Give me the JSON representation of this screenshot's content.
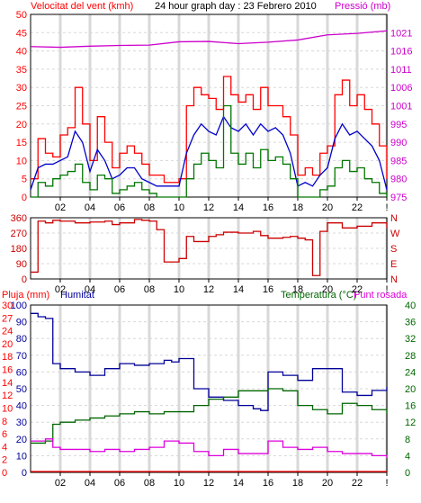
{
  "colors": {
    "background": "#ffffff",
    "grid": "#d8d8d8",
    "axis": "#000000",
    "wind_gust": "#ff0000",
    "wind_avg": "#0000cc",
    "wind_green": "#007700",
    "pressure": "#cc00cc",
    "direction": "#cc0000",
    "humidity": "#000099",
    "temperature": "#006600",
    "dewpoint": "#dd00dd",
    "rain": "#ff0000"
  },
  "titles": {
    "wind": "Velocitat del vent (kmh)",
    "graph": "24 hour graph day : 23 Febrero 2010",
    "pressure": "Pressió (mb)",
    "rain": "Pluja (mm)",
    "humidity": "Humitat",
    "temperature": "Temperatura (°C)",
    "dewpoint": "Punt rosada"
  },
  "chart_data": [
    {
      "type": "line",
      "name": "wind-pressure",
      "x_ticks": [
        "02",
        "04",
        "06",
        "08",
        "10",
        "12",
        "14",
        "16",
        "18",
        "20",
        "22",
        "!"
      ],
      "y_left_ticks": [
        "0",
        "5",
        "10",
        "15",
        "20",
        "25",
        "30",
        "35",
        "40",
        "45",
        "50"
      ],
      "y_left_range": [
        0,
        50
      ],
      "y_right_ticks": [
        "975",
        "980",
        "985",
        "990",
        "995",
        "1001",
        "1006",
        "1011",
        "1016",
        "1021"
      ],
      "y_right_range": [
        975,
        1025
      ],
      "series": [
        {
          "key": "gust",
          "x": [
            0,
            0.5,
            1,
            1.5,
            2,
            2.5,
            3,
            3.5,
            4,
            4.5,
            5,
            5.5,
            6,
            6.5,
            7,
            7.5,
            8,
            8.5,
            9,
            9.5,
            10,
            10.5,
            11,
            11.5,
            12,
            12.5,
            13,
            13.5,
            14,
            14.5,
            15,
            15.5,
            16,
            16.5,
            17,
            17.5,
            18,
            18.5,
            19,
            19.5,
            20,
            20.5,
            21,
            21.5,
            22,
            22.5,
            23,
            23.5,
            24
          ],
          "values": [
            5,
            16,
            12,
            11,
            17,
            19,
            30,
            20,
            10,
            22,
            15,
            8,
            12,
            14,
            12,
            9,
            6,
            6,
            4,
            4,
            5,
            25,
            30,
            28,
            27,
            24,
            33,
            28,
            26,
            28,
            24,
            30,
            25,
            25,
            22,
            17,
            6,
            8,
            6,
            12,
            14,
            28,
            32,
            25,
            28,
            24,
            20,
            14,
            5
          ]
        },
        {
          "key": "average",
          "x": [
            0,
            0.5,
            1,
            1.5,
            2,
            2.5,
            3,
            3.5,
            4,
            4.5,
            5,
            5.5,
            6,
            6.5,
            7,
            7.5,
            8,
            8.5,
            9,
            9.5,
            10,
            10.5,
            11,
            11.5,
            12,
            12.5,
            13,
            13.5,
            14,
            14.5,
            15,
            15.5,
            16,
            16.5,
            17,
            17.5,
            18,
            18.5,
            19,
            19.5,
            20,
            20.5,
            21,
            21.5,
            22,
            22.5,
            23,
            23.5,
            24
          ],
          "values": [
            2,
            8,
            9,
            9,
            10,
            11,
            18,
            15,
            7,
            13,
            10,
            5,
            6,
            8,
            8,
            5,
            4,
            3,
            3,
            3,
            3,
            12,
            17,
            20,
            18,
            17,
            22,
            19,
            18,
            20,
            17,
            20,
            18,
            19,
            17,
            12,
            3,
            4,
            3,
            6,
            8,
            16,
            20,
            17,
            18,
            16,
            14,
            10,
            2
          ]
        },
        {
          "key": "calm",
          "x": [
            0,
            0.5,
            1,
            1.5,
            2,
            2.5,
            3,
            3.5,
            4,
            4.5,
            5,
            5.5,
            6,
            6.5,
            7,
            7.5,
            8,
            8.5,
            9,
            9.5,
            10,
            10.5,
            11,
            11.5,
            12,
            12.5,
            13,
            13.5,
            14,
            14.5,
            15,
            15.5,
            16,
            16.5,
            17,
            17.5,
            18,
            18.5,
            19,
            19.5,
            20,
            20.5,
            21,
            21.5,
            22,
            22.5,
            23,
            23.5,
            24
          ],
          "values": [
            0,
            4,
            3,
            5,
            6,
            7,
            9,
            4,
            2,
            6,
            5,
            1,
            2,
            3,
            4,
            2,
            1,
            0,
            0,
            0,
            0,
            5,
            9,
            12,
            10,
            8,
            25,
            12,
            9,
            12,
            8,
            13,
            10,
            11,
            9,
            5,
            0,
            0,
            0,
            2,
            3,
            8,
            10,
            7,
            8,
            5,
            4,
            1,
            0
          ]
        },
        {
          "key": "pressure",
          "axis": "right",
          "x": [
            0,
            2,
            4,
            6,
            8,
            10,
            12,
            14,
            16,
            18,
            20,
            22,
            24
          ],
          "values": [
            1016.2,
            1016.0,
            1016.3,
            1016.5,
            1016.6,
            1017.5,
            1017.6,
            1017.0,
            1017.4,
            1018.0,
            1019.4,
            1019.8,
            1020.5
          ]
        }
      ]
    },
    {
      "type": "line",
      "name": "wind-direction",
      "x_ticks": [
        "02",
        "04",
        "06",
        "08",
        "10",
        "12",
        "14",
        "16",
        "18",
        "20",
        "22",
        "!"
      ],
      "y_left_ticks": [
        "360",
        "270",
        "180",
        "90",
        "0"
      ],
      "y_left_range": [
        0,
        360
      ],
      "y_right_ticks": [
        "N",
        "W",
        "S",
        "E",
        "N"
      ],
      "series": [
        {
          "key": "direction",
          "x": [
            0,
            0.5,
            1,
            1.5,
            2,
            3,
            4,
            5,
            5.5,
            6,
            7,
            7.5,
            8,
            8.5,
            9,
            10,
            10.5,
            11,
            12,
            12.5,
            13,
            14,
            15,
            15.5,
            16,
            17,
            17.5,
            18,
            18.5,
            19,
            19.5,
            20,
            21,
            22,
            23,
            24
          ],
          "values": [
            40,
            340,
            330,
            345,
            340,
            330,
            335,
            340,
            320,
            330,
            350,
            345,
            340,
            290,
            100,
            120,
            250,
            220,
            250,
            260,
            275,
            270,
            280,
            255,
            240,
            245,
            250,
            240,
            230,
            20,
            280,
            330,
            300,
            310,
            330,
            300
          ]
        }
      ]
    },
    {
      "type": "line",
      "name": "rain-humidity-temperature",
      "x_ticks": [
        "02",
        "04",
        "06",
        "08",
        "10",
        "12",
        "14",
        "16",
        "18",
        "20",
        "22",
        "!"
      ],
      "y_rain_ticks": [
        "0",
        "2",
        "4",
        "6",
        "8",
        "10",
        "12",
        "14",
        "16",
        "18",
        "20",
        "24",
        "27",
        "30"
      ],
      "y_humidity_ticks": [
        "0",
        "10",
        "20",
        "30",
        "40",
        "50",
        "60",
        "70",
        "80",
        "90",
        "100"
      ],
      "y_humidity_range": [
        0,
        100
      ],
      "y_temp_ticks": [
        "0",
        "4",
        "8",
        "12",
        "16",
        "20",
        "24",
        "28",
        "32",
        "36",
        "40"
      ],
      "y_temp_range": [
        0,
        40
      ],
      "series": [
        {
          "key": "humidity",
          "x": [
            0,
            0.5,
            1,
            1.5,
            2,
            3,
            4,
            5,
            6,
            7,
            8,
            9,
            9.5,
            10,
            11,
            12,
            13,
            14,
            15,
            15.5,
            16,
            17,
            18,
            19,
            20,
            21,
            22,
            23,
            24
          ],
          "values": [
            95,
            93,
            92,
            65,
            62,
            60,
            58,
            62,
            65,
            64,
            65,
            67,
            66,
            68,
            50,
            45,
            43,
            40,
            38,
            37,
            60,
            58,
            55,
            62,
            62,
            48,
            46,
            49,
            51
          ]
        },
        {
          "key": "temperature",
          "x": [
            0,
            0.5,
            1,
            1.5,
            2,
            3,
            4,
            5,
            6,
            7,
            8,
            9,
            10,
            11,
            12,
            13,
            14,
            15,
            16,
            17,
            18,
            19,
            20,
            21,
            22,
            23,
            24
          ],
          "values": [
            7,
            7,
            7.5,
            11.5,
            12,
            12.5,
            13,
            13.5,
            14,
            14.5,
            14,
            14.5,
            14.5,
            16,
            17.5,
            18,
            19.5,
            19.5,
            20,
            19.5,
            16,
            15,
            14,
            16.5,
            16,
            15,
            14
          ]
        },
        {
          "key": "dewpoint",
          "x": [
            0,
            0.5,
            1,
            1.5,
            2,
            3,
            4,
            5,
            6,
            7,
            8,
            9,
            10,
            11,
            12,
            13,
            14,
            15,
            16,
            17,
            18,
            19,
            20,
            21,
            22,
            23,
            24
          ],
          "values": [
            7.5,
            7.5,
            8,
            6,
            5.5,
            5.5,
            5,
            5.5,
            5,
            5.5,
            6,
            7.5,
            7,
            5,
            4,
            5.5,
            4.5,
            4.5,
            7.5,
            6,
            5.5,
            6,
            5,
            4.5,
            4.5,
            4,
            3.5
          ]
        },
        {
          "key": "rain",
          "x": [
            0,
            24
          ],
          "values": [
            0,
            0
          ]
        }
      ]
    }
  ]
}
